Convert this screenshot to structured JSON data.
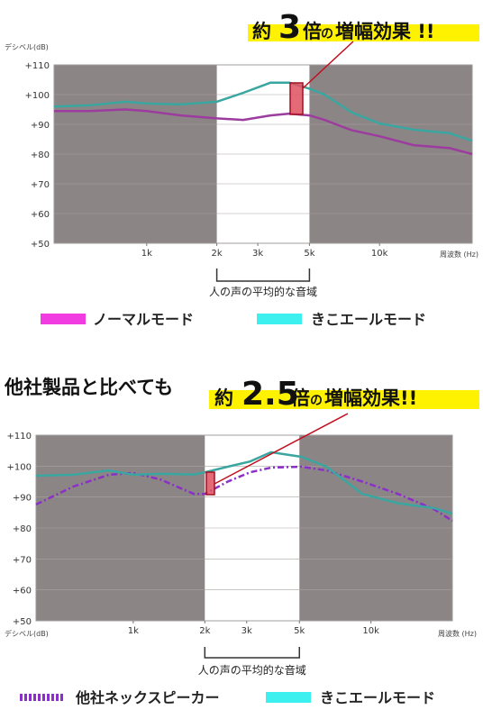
{
  "chart_data": [
    {
      "type": "line",
      "log_x": true,
      "grid": true,
      "headline": {
        "prefix": "約",
        "number": "3",
        "unit": "倍",
        "particle": "の",
        "rest": "増幅効果 !!"
      },
      "y_label": "デシベル(dB)",
      "x_label": "周波数 (Hz)",
      "xlim": [
        400,
        25000
      ],
      "ylim": [
        50,
        110
      ],
      "yticks": [
        {
          "value": 110,
          "label": "+110"
        },
        {
          "value": 100,
          "label": "+100"
        },
        {
          "value": 90,
          "label": "+90"
        },
        {
          "value": 80,
          "label": "+80"
        },
        {
          "value": 70,
          "label": "+70"
        },
        {
          "value": 60,
          "label": "+60"
        },
        {
          "value": 50,
          "label": "+50"
        }
      ],
      "xticks": [
        {
          "value": 1000,
          "label": "1k"
        },
        {
          "value": 2000,
          "label": "2k"
        },
        {
          "value": 3000,
          "label": "3k"
        },
        {
          "value": 5000,
          "label": "5k"
        },
        {
          "value": 10000,
          "label": "10k"
        }
      ],
      "highlight_range": [
        2000,
        5000
      ],
      "range_label": "人の声の平均的な音域",
      "x": [
        400,
        570,
        810,
        1000,
        1400,
        2000,
        2600,
        3400,
        4100,
        5000,
        5800,
        7600,
        10000,
        14000,
        20000,
        25000
      ],
      "series": [
        {
          "name": "ノーマルモード",
          "color": "#9c3c9e",
          "legend_color": "#f03ce0",
          "values": [
            94.5,
            94.5,
            95,
            94.5,
            93,
            92,
            91.5,
            93,
            93.6,
            93,
            91.5,
            88,
            86,
            83,
            82,
            80
          ]
        },
        {
          "name": "きこエールモード",
          "color": "#3aa6a0",
          "legend_color": "#3cf0f0",
          "values": [
            96,
            96.4,
            97.6,
            97,
            96.7,
            97.6,
            100.6,
            104,
            104,
            102,
            100,
            94,
            90.3,
            88.2,
            87,
            84.5
          ]
        }
      ]
    },
    {
      "type": "line",
      "log_x": true,
      "grid": true,
      "lead": "他社製品と比べても",
      "headline": {
        "prefix": "約",
        "number": "2.5",
        "unit": "倍",
        "particle": "の",
        "rest": "増幅効果!!"
      },
      "y_label": "デシベル(dB)",
      "x_label": "周波数 (Hz)",
      "xlim": [
        390,
        22000
      ],
      "ylim": [
        50,
        110
      ],
      "yticks": [
        {
          "value": 110,
          "label": "+110"
        },
        {
          "value": 100,
          "label": "+100"
        },
        {
          "value": 90,
          "label": "+90"
        },
        {
          "value": 80,
          "label": "+80"
        },
        {
          "value": 70,
          "label": "+70"
        },
        {
          "value": 60,
          "label": "+60"
        },
        {
          "value": 50,
          "label": "+50"
        }
      ],
      "xticks": [
        {
          "value": 1000,
          "label": "1k"
        },
        {
          "value": 2000,
          "label": "2k"
        },
        {
          "value": 3000,
          "label": "3k"
        },
        {
          "value": 5000,
          "label": "5k"
        },
        {
          "value": 10000,
          "label": "10k"
        }
      ],
      "highlight_range": [
        2000,
        5000
      ],
      "range_label": "人の声の平均的な音域",
      "x": [
        390,
        560,
        790,
        1000,
        1300,
        1800,
        2000,
        2500,
        3100,
        3800,
        5100,
        6500,
        9200,
        13000,
        18500,
        22000
      ],
      "series": [
        {
          "name": "他社ネックスピーカー",
          "color": "#8b2fc9",
          "legend_color": "#8b2fc9",
          "dashed": true,
          "values": [
            87.6,
            93.4,
            97.2,
            97.8,
            95.7,
            91,
            91,
            95,
            98,
            99.5,
            99.8,
            98.6,
            95,
            91,
            86,
            82.3
          ]
        },
        {
          "name": "きこエールモード",
          "color": "#3aa6a0",
          "legend_color": "#3cf0f0",
          "values": [
            96.9,
            97.2,
            98.6,
            97.2,
            97.5,
            97.3,
            98,
            99.8,
            101.5,
            104.5,
            103,
            99.8,
            91,
            88,
            86.4,
            84.6
          ]
        }
      ]
    }
  ]
}
